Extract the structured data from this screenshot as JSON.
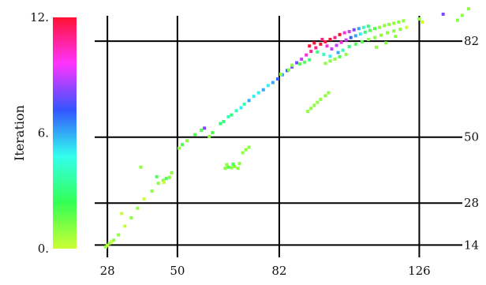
{
  "chart_data": {
    "type": "scatter",
    "title": "",
    "xlabel": "",
    "ylabel": "",
    "x_ticks": [
      28,
      50,
      82,
      126
    ],
    "y_ticks": [
      14,
      28,
      50,
      82
    ],
    "xlim": [
      24,
      143
    ],
    "ylim": [
      12,
      91
    ],
    "grid": true,
    "colorbar": {
      "label": "Iteration",
      "min": 0,
      "max": 12,
      "tick_labels": [
        "0.",
        "6.",
        "12."
      ],
      "tick_values": [
        0,
        6,
        12
      ],
      "colors": [
        "#ccff33",
        "#33ff55",
        "#33ffee",
        "#3355ff",
        "#ff33ff",
        "#ff1133"
      ]
    },
    "points": [
      {
        "x": 27.5,
        "y": 13.4,
        "c": 1
      },
      {
        "x": 28.0,
        "y": 13.9,
        "c": 0
      },
      {
        "x": 28.6,
        "y": 14.5,
        "c": 1
      },
      {
        "x": 29.2,
        "y": 15.1,
        "c": 0
      },
      {
        "x": 30.0,
        "y": 15.6,
        "c": 1
      },
      {
        "x": 31.5,
        "y": 17.4,
        "c": 1
      },
      {
        "x": 33.5,
        "y": 20.3,
        "c": 0
      },
      {
        "x": 35.5,
        "y": 23.1,
        "c": 1
      },
      {
        "x": 37.5,
        "y": 26.3,
        "c": 1
      },
      {
        "x": 39.5,
        "y": 29.4,
        "c": 0
      },
      {
        "x": 42.0,
        "y": 32.0,
        "c": 1
      },
      {
        "x": 44.0,
        "y": 34.6,
        "c": 1
      },
      {
        "x": 45.5,
        "y": 35.6,
        "c": 1
      },
      {
        "x": 46.5,
        "y": 36.2,
        "c": 2
      },
      {
        "x": 47.5,
        "y": 36.6,
        "c": 1
      },
      {
        "x": 48.2,
        "y": 38.1,
        "c": 1
      },
      {
        "x": 45.8,
        "y": 34.9,
        "c": 0
      },
      {
        "x": 43.5,
        "y": 36.8,
        "c": 2
      },
      {
        "x": 38.5,
        "y": 40.0,
        "c": 1
      },
      {
        "x": 32.5,
        "y": 24.5,
        "c": 0
      },
      {
        "x": 50.5,
        "y": 46.3,
        "c": 1
      },
      {
        "x": 51.5,
        "y": 47.5,
        "c": 2
      },
      {
        "x": 53.0,
        "y": 48.8,
        "c": 1
      },
      {
        "x": 55.5,
        "y": 50.8,
        "c": 2
      },
      {
        "x": 57.5,
        "y": 52.3,
        "c": 2
      },
      {
        "x": 58.5,
        "y": 53.0,
        "c": 8
      },
      {
        "x": 60.0,
        "y": 50.2,
        "c": 1
      },
      {
        "x": 61.0,
        "y": 51.5,
        "c": 2
      },
      {
        "x": 63.5,
        "y": 54.5,
        "c": 3
      },
      {
        "x": 64.5,
        "y": 55.2,
        "c": 3
      },
      {
        "x": 66.0,
        "y": 56.8,
        "c": 4
      },
      {
        "x": 67.0,
        "y": 57.4,
        "c": 3
      },
      {
        "x": 68.5,
        "y": 58.8,
        "c": 4
      },
      {
        "x": 70.0,
        "y": 59.8,
        "c": 5
      },
      {
        "x": 71.0,
        "y": 61.0,
        "c": 4
      },
      {
        "x": 72.5,
        "y": 62.2,
        "c": 6
      },
      {
        "x": 74.0,
        "y": 63.6,
        "c": 5
      },
      {
        "x": 75.5,
        "y": 64.8,
        "c": 5
      },
      {
        "x": 77.0,
        "y": 65.8,
        "c": 6
      },
      {
        "x": 78.5,
        "y": 67.2,
        "c": 5
      },
      {
        "x": 80.0,
        "y": 68.2,
        "c": 6
      },
      {
        "x": 81.5,
        "y": 69.4,
        "c": 7
      },
      {
        "x": 83.0,
        "y": 70.8,
        "c": 6
      },
      {
        "x": 84.5,
        "y": 72.2,
        "c": 7
      },
      {
        "x": 86.0,
        "y": 73.4,
        "c": 8
      },
      {
        "x": 87.5,
        "y": 74.8,
        "c": 8
      },
      {
        "x": 89.0,
        "y": 76.0,
        "c": 9
      },
      {
        "x": 90.5,
        "y": 77.4,
        "c": 10
      },
      {
        "x": 92.0,
        "y": 78.6,
        "c": 11
      },
      {
        "x": 93.5,
        "y": 79.8,
        "c": 11
      },
      {
        "x": 95.0,
        "y": 81.0,
        "c": 12
      },
      {
        "x": 96.5,
        "y": 81.8,
        "c": 12
      },
      {
        "x": 98.0,
        "y": 82.6,
        "c": 12
      },
      {
        "x": 99.5,
        "y": 83.2,
        "c": 11
      },
      {
        "x": 101.0,
        "y": 84.2,
        "c": 12
      },
      {
        "x": 102.5,
        "y": 84.8,
        "c": 10
      },
      {
        "x": 104.0,
        "y": 85.2,
        "c": 9
      },
      {
        "x": 105.5,
        "y": 85.8,
        "c": 8
      },
      {
        "x": 107.0,
        "y": 86.2,
        "c": 6
      },
      {
        "x": 108.5,
        "y": 86.6,
        "c": 4
      },
      {
        "x": 110.0,
        "y": 87.0,
        "c": 3
      },
      {
        "x": 91.5,
        "y": 80.4,
        "c": 12
      },
      {
        "x": 93.0,
        "y": 81.4,
        "c": 12
      },
      {
        "x": 95.5,
        "y": 82.6,
        "c": 11
      },
      {
        "x": 97.0,
        "y": 80.4,
        "c": 10
      },
      {
        "x": 98.5,
        "y": 79.4,
        "c": 9
      },
      {
        "x": 100.0,
        "y": 80.6,
        "c": 9
      },
      {
        "x": 101.5,
        "y": 81.6,
        "c": 10
      },
      {
        "x": 103.0,
        "y": 82.4,
        "c": 9
      },
      {
        "x": 104.5,
        "y": 83.2,
        "c": 7
      },
      {
        "x": 106.0,
        "y": 83.8,
        "c": 6
      },
      {
        "x": 107.5,
        "y": 84.4,
        "c": 5
      },
      {
        "x": 109.0,
        "y": 85.0,
        "c": 3
      },
      {
        "x": 110.5,
        "y": 85.6,
        "c": 2
      },
      {
        "x": 112.0,
        "y": 86.2,
        "c": 2
      },
      {
        "x": 113.5,
        "y": 86.6,
        "c": 1
      },
      {
        "x": 115.0,
        "y": 87.2,
        "c": 1
      },
      {
        "x": 116.5,
        "y": 87.6,
        "c": 1
      },
      {
        "x": 118.0,
        "y": 88.0,
        "c": 1
      },
      {
        "x": 119.5,
        "y": 88.4,
        "c": 1
      },
      {
        "x": 121.0,
        "y": 88.8,
        "c": 1
      },
      {
        "x": 94.0,
        "y": 78.4,
        "c": 3
      },
      {
        "x": 96.0,
        "y": 77.6,
        "c": 4
      },
      {
        "x": 98.0,
        "y": 77.0,
        "c": 5
      },
      {
        "x": 100.5,
        "y": 78.2,
        "c": 6
      },
      {
        "x": 102.0,
        "y": 79.0,
        "c": 4
      },
      {
        "x": 104.0,
        "y": 80.2,
        "c": 3
      },
      {
        "x": 106.0,
        "y": 81.0,
        "c": 2
      },
      {
        "x": 108.0,
        "y": 81.8,
        "c": 2
      },
      {
        "x": 110.0,
        "y": 82.6,
        "c": 1
      },
      {
        "x": 112.0,
        "y": 83.2,
        "c": 1
      },
      {
        "x": 114.0,
        "y": 84.0,
        "c": 1
      },
      {
        "x": 116.0,
        "y": 84.8,
        "c": 1
      },
      {
        "x": 118.0,
        "y": 85.4,
        "c": 1
      },
      {
        "x": 120.0,
        "y": 86.0,
        "c": 1
      },
      {
        "x": 122.0,
        "y": 86.6,
        "c": 0
      },
      {
        "x": 86.0,
        "y": 74.0,
        "c": 1
      },
      {
        "x": 88.5,
        "y": 74.4,
        "c": 2
      },
      {
        "x": 90.0,
        "y": 75.0,
        "c": 2
      },
      {
        "x": 91.5,
        "y": 75.8,
        "c": 3
      },
      {
        "x": 85.0,
        "y": 72.4,
        "c": 1
      },
      {
        "x": 82.5,
        "y": 71.0,
        "c": 1
      },
      {
        "x": 96.5,
        "y": 74.6,
        "c": 1
      },
      {
        "x": 98.0,
        "y": 75.4,
        "c": 1
      },
      {
        "x": 99.5,
        "y": 76.0,
        "c": 1
      },
      {
        "x": 101.0,
        "y": 76.8,
        "c": 2
      },
      {
        "x": 103.0,
        "y": 77.6,
        "c": 1
      },
      {
        "x": 91.0,
        "y": 58.6,
        "c": 1
      },
      {
        "x": 92.0,
        "y": 59.6,
        "c": 1
      },
      {
        "x": 93.0,
        "y": 60.6,
        "c": 1
      },
      {
        "x": 94.0,
        "y": 61.6,
        "c": 1
      },
      {
        "x": 95.0,
        "y": 62.6,
        "c": 1
      },
      {
        "x": 96.5,
        "y": 63.8,
        "c": 1
      },
      {
        "x": 97.5,
        "y": 64.8,
        "c": 1
      },
      {
        "x": 65.0,
        "y": 39.6,
        "c": 1
      },
      {
        "x": 66.0,
        "y": 40.0,
        "c": 2
      },
      {
        "x": 67.0,
        "y": 39.8,
        "c": 1
      },
      {
        "x": 68.0,
        "y": 40.2,
        "c": 1
      },
      {
        "x": 69.0,
        "y": 39.6,
        "c": 1
      },
      {
        "x": 65.5,
        "y": 40.8,
        "c": 1
      },
      {
        "x": 67.5,
        "y": 41.0,
        "c": 2
      },
      {
        "x": 69.5,
        "y": 41.2,
        "c": 1
      },
      {
        "x": 71.5,
        "y": 45.8,
        "c": 1
      },
      {
        "x": 72.5,
        "y": 46.6,
        "c": 1
      },
      {
        "x": 70.5,
        "y": 44.8,
        "c": 1
      },
      {
        "x": 126.0,
        "y": 89.4,
        "c": 1
      },
      {
        "x": 133.5,
        "y": 91.0,
        "c": 8
      },
      {
        "x": 138.0,
        "y": 89.0,
        "c": 1
      },
      {
        "x": 141.5,
        "y": 92.8,
        "c": 1
      },
      {
        "x": 139.5,
        "y": 90.6,
        "c": 1
      },
      {
        "x": 127.0,
        "y": 88.4,
        "c": 0
      },
      {
        "x": 112.5,
        "y": 80.0,
        "c": 1
      },
      {
        "x": 115.5,
        "y": 81.4,
        "c": 1
      },
      {
        "x": 118.5,
        "y": 83.6,
        "c": 1
      }
    ]
  }
}
